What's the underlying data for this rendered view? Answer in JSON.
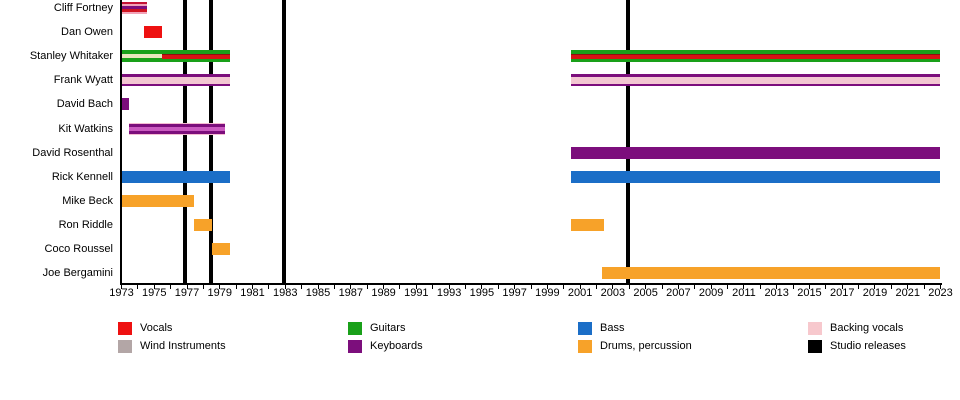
{
  "chart_data": {
    "type": "timeline",
    "title": "",
    "x_axis": {
      "start": 1973,
      "end": 2023,
      "tick_every": 1,
      "label_every": 2,
      "labels": [
        1973,
        1975,
        1977,
        1979,
        1981,
        1983,
        1985,
        1987,
        1989,
        1991,
        1993,
        1995,
        1997,
        1999,
        2001,
        2003,
        2005,
        2007,
        2009,
        2011,
        2013,
        2015,
        2017,
        2019,
        2021,
        2023
      ]
    },
    "studio_releases": [
      1976.9,
      1978.45,
      1982.9,
      2003.95
    ],
    "members": [
      {
        "name": "Cliff Fortney",
        "bars": [
          {
            "from": 1973,
            "to": 1974.55,
            "stripes": [
              [
                "#c41335",
                2
              ],
              [
                "#f2a3b8",
                2
              ],
              [
                "#7c0e7c",
                3
              ],
              [
                "#cf1420",
                3
              ],
              [
                "#f2a3b8",
                2
              ]
            ]
          }
        ]
      },
      {
        "name": "Dan Owen",
        "bars": [
          {
            "from": 1974.4,
            "to": 1975.5,
            "stripes": [
              [
                "#ee1111",
                12
              ]
            ]
          }
        ]
      },
      {
        "name": "Stanley Whitaker",
        "bars": [
          {
            "from": 1973,
            "to": 1975.45,
            "stripes": [
              [
                "#19a019",
                4
              ],
              [
                "#e9e6bd",
                4
              ],
              [
                "#19a019",
                4
              ]
            ]
          },
          {
            "from": 1975.45,
            "to": 1979.65,
            "stripes": [
              [
                "#19a019",
                3.5
              ],
              [
                "#8e0e0e",
                1
              ],
              [
                "#d61414",
                4
              ],
              [
                "#19a019",
                3.5
              ]
            ]
          },
          {
            "from": 2000.45,
            "to": 2023,
            "stripes": [
              [
                "#19a019",
                3.5
              ],
              [
                "#8e0e0e",
                1
              ],
              [
                "#d61414",
                4
              ],
              [
                "#19a019",
                3.5
              ]
            ]
          }
        ]
      },
      {
        "name": "Frank Wyatt",
        "bars": [
          {
            "from": 1973,
            "to": 1979.65,
            "stripes": [
              [
                "#7c0e7c",
                2.5
              ],
              [
                "#f3c7d2",
                7
              ],
              [
                "#7c0e7c",
                2.5
              ]
            ]
          },
          {
            "from": 2000.45,
            "to": 2023,
            "stripes": [
              [
                "#7c0e7c",
                2.5
              ],
              [
                "#f3c7d2",
                7
              ],
              [
                "#7c0e7c",
                2.5
              ]
            ]
          }
        ]
      },
      {
        "name": "David Bach",
        "bars": [
          {
            "from": 1973,
            "to": 1973.45,
            "stripes": [
              [
                "#7c0e7c",
                12
              ]
            ]
          }
        ]
      },
      {
        "name": "Kit Watkins",
        "bars": [
          {
            "from": 1973.45,
            "to": 1979.3,
            "stripes": [
              [
                "#f6bcd2",
                1
              ],
              [
                "#7c0e7c",
                3
              ],
              [
                "#cb5ac0",
                4
              ],
              [
                "#7c0e7c",
                3
              ],
              [
                "#f6bcd2",
                1
              ]
            ]
          }
        ]
      },
      {
        "name": "David Rosenthal",
        "bars": [
          {
            "from": 2000.45,
            "to": 2023,
            "stripes": [
              [
                "#7c0e7c",
                12
              ]
            ]
          }
        ]
      },
      {
        "name": "Rick Kennell",
        "bars": [
          {
            "from": 1973,
            "to": 1979.65,
            "stripes": [
              [
                "#1b6ec7",
                12
              ]
            ]
          },
          {
            "from": 2000.45,
            "to": 2023,
            "stripes": [
              [
                "#1b6ec7",
                12
              ]
            ]
          }
        ]
      },
      {
        "name": "Mike Beck",
        "bars": [
          {
            "from": 1973,
            "to": 1977.45,
            "stripes": [
              [
                "#f7a229",
                12
              ]
            ]
          }
        ]
      },
      {
        "name": "Ron Riddle",
        "bars": [
          {
            "from": 1977.45,
            "to": 1978.5,
            "stripes": [
              [
                "#f7a229",
                12
              ]
            ]
          },
          {
            "from": 2000.45,
            "to": 2002.45,
            "stripes": [
              [
                "#f7a229",
                12
              ]
            ]
          }
        ]
      },
      {
        "name": "Coco Roussel",
        "bars": [
          {
            "from": 1978.5,
            "to": 1979.65,
            "stripes": [
              [
                "#f7a229",
                12
              ]
            ]
          }
        ]
      },
      {
        "name": "Joe Bergamini",
        "bars": [
          {
            "from": 2002.35,
            "to": 2023,
            "stripes": [
              [
                "#f7a229",
                12
              ]
            ]
          }
        ]
      }
    ],
    "legend": [
      {
        "label": "Vocals",
        "color": "#ee1111"
      },
      {
        "label": "Wind Instruments",
        "color": "#b3a6a6"
      },
      {
        "label": "Guitars",
        "color": "#19a019"
      },
      {
        "label": "Keyboards",
        "color": "#7c0e7c"
      },
      {
        "label": "Bass",
        "color": "#1b6ec7"
      },
      {
        "label": "Drums, percussion",
        "color": "#f7a229"
      },
      {
        "label": "Backing vocals",
        "color": "#f7c8cd"
      },
      {
        "label": "Studio releases",
        "color": "#000000"
      }
    ]
  }
}
